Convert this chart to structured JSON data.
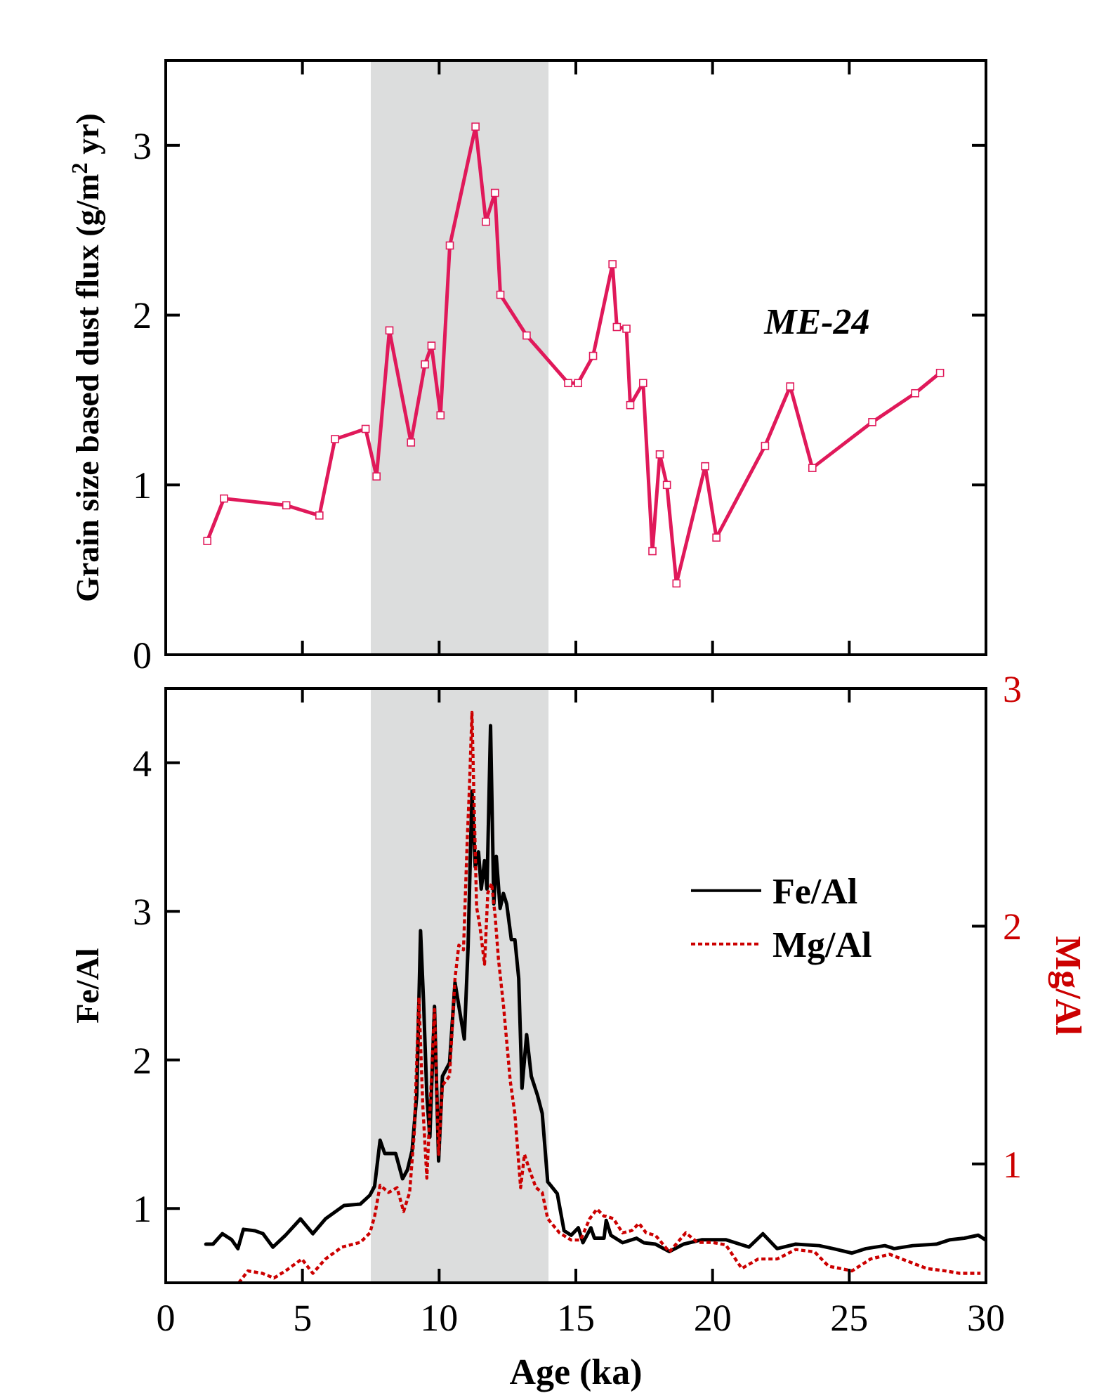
{
  "chart_data": [
    {
      "type": "line",
      "ylabel": "Grain size based dust flux (g/m$^{2}$ yr)",
      "xlim": [
        0,
        30
      ],
      "xticks": [
        0,
        5,
        10,
        15,
        20,
        25,
        30
      ],
      "ylim": [
        0,
        3.5
      ],
      "yticks": [
        0,
        1,
        2,
        3
      ],
      "tick_labels": "y",
      "marker": "square",
      "legend": false,
      "bands": [
        {
          "axis": "x",
          "from": 7.5,
          "to": 14,
          "color": "#dcdddd"
        }
      ],
      "series": [
        {
          "name": "ME-24",
          "color": "#e0195a",
          "line_style": "solid",
          "x": [
            1.52,
            2.13,
            4.41,
            5.62,
            6.19,
            7.31,
            7.71,
            8.18,
            8.97,
            9.48,
            9.72,
            10.05,
            10.39,
            11.33,
            11.71,
            12.04,
            12.24,
            13.2,
            14.72,
            15.08,
            15.63,
            16.34,
            16.5,
            16.85,
            16.99,
            17.46,
            17.8,
            18.07,
            18.33,
            18.68,
            19.73,
            20.14,
            21.92,
            22.84,
            23.65,
            25.84,
            27.41,
            28.32
          ],
          "values": [
            0.67,
            0.92,
            0.88,
            0.82,
            1.27,
            1.33,
            1.05,
            1.91,
            1.25,
            1.71,
            1.82,
            1.41,
            2.41,
            3.11,
            2.55,
            2.72,
            2.12,
            1.88,
            1.6,
            1.6,
            1.76,
            2.3,
            1.93,
            1.92,
            1.47,
            1.6,
            0.61,
            1.18,
            1.0,
            0.42,
            1.11,
            0.69,
            1.23,
            1.58,
            1.1,
            1.37,
            1.54,
            1.66
          ]
        }
      ]
    },
    {
      "type": "line",
      "xlabel": "Age (ka)",
      "ylabel": "Fe/Al",
      "y2label": "Mg/Al",
      "xlim": [
        0,
        30
      ],
      "xticks": [
        0,
        5,
        10,
        15,
        20,
        25,
        30
      ],
      "ylim": [
        0.5,
        4.5
      ],
      "yticks": [
        1,
        2,
        3,
        4
      ],
      "y2lim": [
        0.5,
        3
      ],
      "y2ticks": [
        1,
        2,
        3
      ],
      "legend": "right",
      "bands": [
        {
          "axis": "x",
          "from": 7.5,
          "to": 14,
          "color": "#dcdddd"
        }
      ],
      "series": [
        {
          "name": "Fe/Al",
          "color": "#000000",
          "line_style": "solid",
          "x": [
            1.47,
            1.73,
            2.07,
            2.41,
            2.64,
            2.84,
            3.27,
            3.56,
            3.92,
            4.38,
            4.93,
            5.38,
            5.84,
            6.52,
            7.12,
            7.47,
            7.64,
            7.84,
            8.01,
            8.41,
            8.66,
            8.84,
            9.01,
            9.18,
            9.32,
            9.43,
            9.55,
            9.66,
            9.83,
            9.98,
            10.12,
            10.38,
            10.58,
            10.75,
            10.92,
            11.06,
            11.2,
            11.32,
            11.44,
            11.54,
            11.66,
            11.75,
            11.88,
            12.0,
            12.09,
            12.23,
            12.35,
            12.47,
            12.64,
            12.77,
            12.91,
            13.03,
            13.2,
            13.37,
            13.6,
            13.77,
            13.97,
            14.32,
            14.57,
            14.83,
            15.09,
            15.26,
            15.55,
            15.68,
            16.03,
            16.11,
            16.28,
            16.71,
            17.22,
            17.48,
            17.91,
            18.42,
            18.94,
            19.62,
            20.48,
            21.33,
            21.84,
            22.36,
            23.04,
            23.9,
            24.41,
            25.1,
            25.61,
            26.3,
            26.64,
            27.32,
            28.18,
            28.69,
            29.21,
            29.72,
            29.97
          ],
          "values": [
            0.76,
            0.76,
            0.83,
            0.79,
            0.73,
            0.86,
            0.85,
            0.83,
            0.74,
            0.82,
            0.93,
            0.83,
            0.93,
            1.02,
            1.03,
            1.09,
            1.15,
            1.46,
            1.37,
            1.37,
            1.2,
            1.26,
            1.39,
            1.76,
            2.87,
            2.39,
            1.76,
            1.48,
            2.36,
            1.32,
            1.89,
            1.98,
            2.52,
            2.33,
            2.14,
            2.77,
            3.81,
            3.3,
            3.4,
            3.15,
            3.34,
            3.15,
            4.25,
            3.05,
            3.37,
            3.02,
            3.12,
            3.05,
            2.81,
            2.81,
            2.55,
            1.81,
            2.17,
            1.89,
            1.76,
            1.64,
            1.18,
            1.1,
            0.85,
            0.82,
            0.87,
            0.77,
            0.87,
            0.8,
            0.8,
            0.92,
            0.82,
            0.77,
            0.8,
            0.77,
            0.76,
            0.71,
            0.76,
            0.79,
            0.79,
            0.74,
            0.83,
            0.73,
            0.76,
            0.75,
            0.73,
            0.7,
            0.73,
            0.75,
            0.73,
            0.75,
            0.76,
            0.79,
            0.8,
            0.82,
            0.79
          ]
        },
        {
          "name": "Mg/Al",
          "color": "#cc0000",
          "line_style": "dotted",
          "axis": "y2",
          "x": [
            2.67,
            3.01,
            3.53,
            3.96,
            4.38,
            4.98,
            5.38,
            5.84,
            6.44,
            7.12,
            7.47,
            7.64,
            7.84,
            8.15,
            8.46,
            8.7,
            8.92,
            9.09,
            9.26,
            9.4,
            9.55,
            9.69,
            9.83,
            9.98,
            10.12,
            10.38,
            10.58,
            10.72,
            10.89,
            11.03,
            11.11,
            11.2,
            11.28,
            11.37,
            11.49,
            11.66,
            11.78,
            11.92,
            12.05,
            12.17,
            12.35,
            12.6,
            12.77,
            12.98,
            13.12,
            13.29,
            13.54,
            13.77,
            13.97,
            14.4,
            14.83,
            15.17,
            15.51,
            15.77,
            16.03,
            16.11,
            16.37,
            16.71,
            17.05,
            17.31,
            17.57,
            17.91,
            18.42,
            19.02,
            19.45,
            19.96,
            20.48,
            21.07,
            21.67,
            22.36,
            23.04,
            23.73,
            24.24,
            25.1,
            25.78,
            26.47,
            27.15,
            27.84,
            28.52,
            29.03,
            29.8
          ],
          "values": [
            0.5,
            0.55,
            0.54,
            0.52,
            0.55,
            0.6,
            0.54,
            0.6,
            0.65,
            0.67,
            0.71,
            0.78,
            0.91,
            0.88,
            0.9,
            0.8,
            0.88,
            1.13,
            1.7,
            1.25,
            0.94,
            1.29,
            1.65,
            1.04,
            1.33,
            1.37,
            1.78,
            1.92,
            1.9,
            2.37,
            2.59,
            2.9,
            2.51,
            2.08,
            2.0,
            1.84,
            2.14,
            2.18,
            2.04,
            1.86,
            1.67,
            1.35,
            1.21,
            0.9,
            1.04,
            0.98,
            0.9,
            0.88,
            0.77,
            0.71,
            0.68,
            0.68,
            0.77,
            0.81,
            0.78,
            0.78,
            0.77,
            0.71,
            0.72,
            0.75,
            0.71,
            0.7,
            0.63,
            0.71,
            0.67,
            0.67,
            0.66,
            0.56,
            0.6,
            0.6,
            0.64,
            0.63,
            0.57,
            0.55,
            0.6,
            0.62,
            0.59,
            0.56,
            0.55,
            0.54,
            0.54
          ]
        }
      ]
    }
  ]
}
